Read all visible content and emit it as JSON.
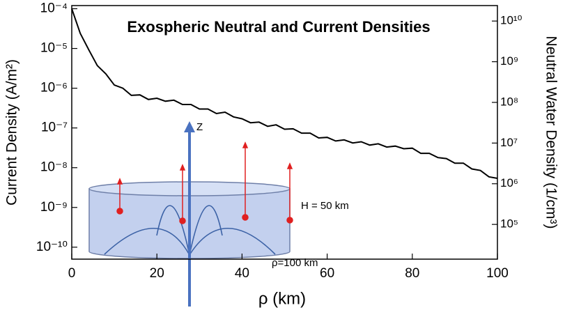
{
  "chart_data": {
    "type": "line",
    "title": "Exospheric Neutral and Current Densities",
    "x_label": "ρ  (km)",
    "y_label": "Current Density (A/m²)",
    "y2_label": "Neutral Water Density (1/cm³)",
    "xlim": [
      0,
      100
    ],
    "xticks": [
      0,
      20,
      40,
      60,
      80,
      100
    ],
    "ylim": [
      5e-11,
      0.00012
    ],
    "log_y": true,
    "yticks": [
      {
        "value": 0.0001,
        "label": "10⁻⁴"
      },
      {
        "value": 1e-05,
        "label": "10⁻⁵"
      },
      {
        "value": 1e-06,
        "label": "10⁻⁶"
      },
      {
        "value": 1e-07,
        "label": "10⁻⁷"
      },
      {
        "value": 1e-08,
        "label": "10⁻⁸"
      },
      {
        "value": 1e-09,
        "label": "10⁻⁹"
      },
      {
        "value": 1e-10,
        "label": "10⁻¹⁰"
      }
    ],
    "y2lim": [
      14000,
      24000000000
    ],
    "y2ticks": [
      {
        "value": 10000000000.0,
        "label": "10¹⁰"
      },
      {
        "value": 1000000000.0,
        "label": "10⁹"
      },
      {
        "value": 100000000.0,
        "label": "10⁸"
      },
      {
        "value": 10000000.0,
        "label": "10⁷"
      },
      {
        "value": 1000000.0,
        "label": "10⁶"
      },
      {
        "value": 100000.0,
        "label": "10⁵"
      }
    ],
    "x": [
      0,
      2,
      4,
      6,
      8,
      10,
      12,
      14,
      16,
      18,
      20,
      22,
      24,
      26,
      28,
      30,
      32,
      34,
      36,
      38,
      40,
      42,
      44,
      46,
      48,
      50,
      52,
      54,
      56,
      58,
      60,
      62,
      64,
      66,
      68,
      70,
      72,
      74,
      76,
      78,
      80,
      82,
      84,
      86,
      88,
      90,
      92,
      94,
      96,
      98,
      100
    ],
    "series": [
      {
        "color": "#000000",
        "values": [
          0.0001,
          2.4e-05,
          9.3e-06,
          3.7e-06,
          2.3e-06,
          1.2e-06,
          1e-06,
          6.6e-07,
          6.8e-07,
          5.2e-07,
          5.6e-07,
          4.7e-07,
          5e-07,
          3.9e-07,
          3.9e-07,
          3e-07,
          3e-07,
          2.3e-07,
          2.5e-07,
          1.9e-07,
          1.7e-07,
          1.35e-07,
          1.4e-07,
          1.1e-07,
          1.2e-07,
          9.3e-08,
          9.5e-08,
          7.4e-08,
          7.4e-08,
          5.6e-08,
          5.8e-08,
          4.7e-08,
          5e-08,
          4.2e-08,
          4.5e-08,
          3.7e-08,
          4e-08,
          3.3e-08,
          3.5e-08,
          3e-08,
          3.1e-08,
          2.3e-08,
          2.3e-08,
          1.8e-08,
          1.7e-08,
          1.3e-08,
          1.3e-08,
          9.3e-09,
          8.5e-09,
          5.9e-09,
          5.4e-09
        ]
      }
    ],
    "annotations": [
      "Z",
      "H = 50 km",
      "ρ=100 km"
    ]
  }
}
